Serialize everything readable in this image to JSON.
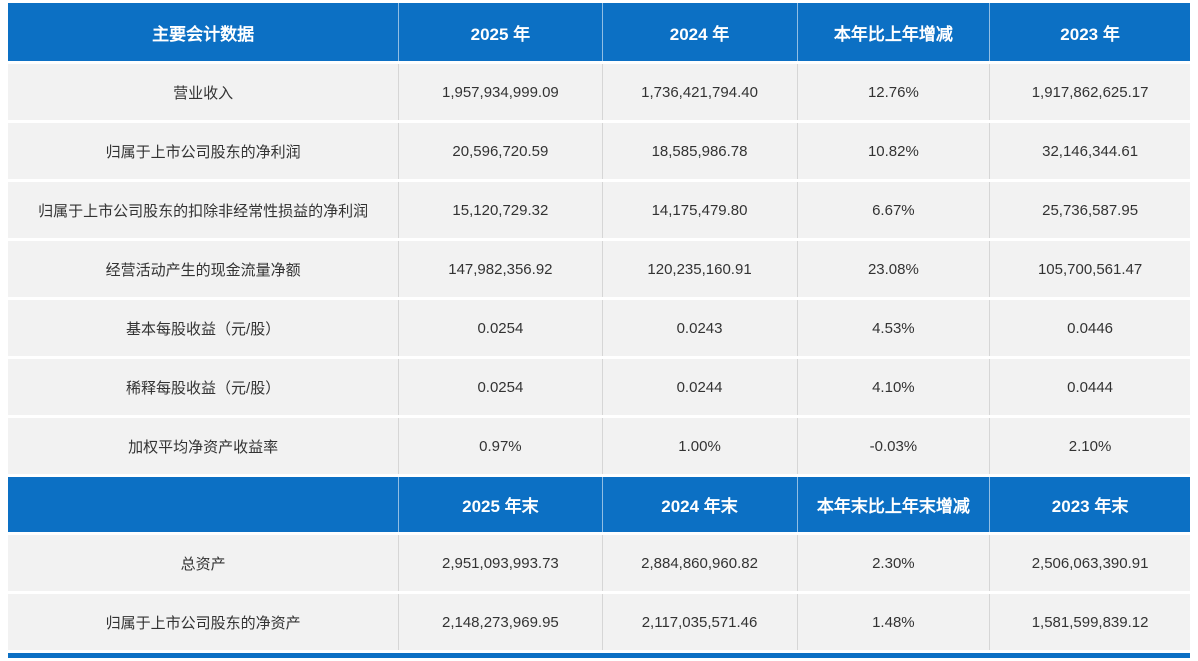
{
  "colors": {
    "header_bg": "#0c70c4",
    "header_text": "#ffffff",
    "row_bg": "#f2f2f2",
    "body_text": "#333333",
    "column_divider": "#d6d6d6"
  },
  "table": {
    "header_annual": {
      "label": "主要会计数据",
      "cols": [
        "2025 年",
        "2024 年",
        "本年比上年增减",
        "2023 年"
      ]
    },
    "annual_rows": [
      {
        "label": "营业收入",
        "values": [
          "1,957,934,999.09",
          "1,736,421,794.40",
          "12.76%",
          "1,917,862,625.17"
        ]
      },
      {
        "label": "归属于上市公司股东的净利润",
        "values": [
          "20,596,720.59",
          "18,585,986.78",
          "10.82%",
          "32,146,344.61"
        ]
      },
      {
        "label": "归属于上市公司股东的扣除非经常性损益的净利润",
        "values": [
          "15,120,729.32",
          "14,175,479.80",
          "6.67%",
          "25,736,587.95"
        ]
      },
      {
        "label": "经营活动产生的现金流量净额",
        "values": [
          "147,982,356.92",
          "120,235,160.91",
          "23.08%",
          "105,700,561.47"
        ]
      },
      {
        "label": "基本每股收益（元/股）",
        "values": [
          "0.0254",
          "0.0243",
          "4.53%",
          "0.0446"
        ]
      },
      {
        "label": "稀释每股收益（元/股）",
        "values": [
          "0.0254",
          "0.0244",
          "4.10%",
          "0.0444"
        ]
      },
      {
        "label": "加权平均净资产收益率",
        "values": [
          "0.97%",
          "1.00%",
          "-0.03%",
          "2.10%"
        ]
      }
    ],
    "header_period_end": {
      "label": "",
      "cols": [
        "2025 年末",
        "2024 年末",
        "本年末比上年末增减",
        "2023 年末"
      ]
    },
    "period_end_rows": [
      {
        "label": "总资产",
        "values": [
          "2,951,093,993.73",
          "2,884,860,960.82",
          "2.30%",
          "2,506,063,390.91"
        ]
      },
      {
        "label": "归属于上市公司股东的净资产",
        "values": [
          "2,148,273,969.95",
          "2,117,035,571.46",
          "1.48%",
          "1,581,599,839.12"
        ]
      }
    ]
  }
}
